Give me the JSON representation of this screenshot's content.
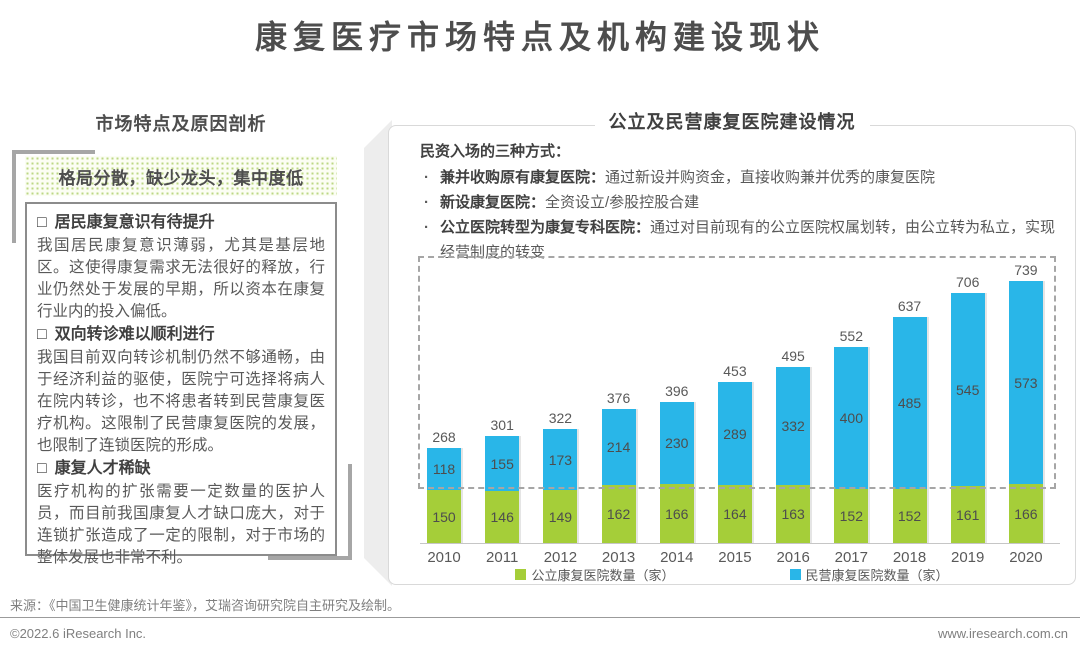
{
  "page": {
    "title": "康复医疗市场特点及机构建设现状",
    "source": "来源：《中国卫生健康统计年鉴》，艾瑞咨询研究院自主研究及绘制。",
    "copyright": "©2022.6 iResearch Inc.",
    "website": "www.iresearch.com.cn"
  },
  "left_panel": {
    "header": "市场特点及原因剖析",
    "highlight": "格局分散，缺少龙头，集中度低",
    "bullet_char": "□",
    "sections": [
      {
        "heading": "居民康复意识有待提升",
        "body": "我国居民康复意识薄弱，尤其是基层地区。这使得康复需求无法很好的释放，行业仍然处于发展的早期，所以资本在康复行业内的投入偏低。"
      },
      {
        "heading": "双向转诊难以顺利进行",
        "body": "我国目前双向转诊机制仍然不够通畅，由于经济利益的驱使，医院宁可选择将病人在院内转诊，也不将患者转到民营康复医疗机构。这限制了民营康复医院的发展，也限制了连锁医院的形成。"
      },
      {
        "heading": "康复人才稀缺",
        "body": "医疗机构的扩张需要一定数量的医护人员，而目前我国康复人才缺口庞大，对于连锁扩张造成了一定的限制，对于市场的整体发展也非常不利。"
      }
    ]
  },
  "right_panel": {
    "header": "公立及民营康复医院建设情况",
    "intro": "民资入场的三种方式：",
    "bullet_char": "·",
    "bullets": [
      {
        "label": "兼并收购原有康复医院：",
        "text": "通过新设并购资金，直接收购兼并优秀的康复医院"
      },
      {
        "label": "新设康复医院：",
        "text": "全资设立/参股控股合建"
      },
      {
        "label": "公立医院转型为康复专科医院：",
        "text": "通过对目前现有的公立医院权属划转，由公立转为私立，实现经营制度的转变"
      }
    ]
  },
  "chart_data": {
    "type": "bar",
    "stacked": true,
    "title": "公立及民营康复医院建设情况",
    "categories": [
      "2010",
      "2011",
      "2012",
      "2013",
      "2014",
      "2015",
      "2016",
      "2017",
      "2018",
      "2019",
      "2020"
    ],
    "series": [
      {
        "name": "公立康复医院数量（家）",
        "color": "#a5ce39",
        "values": [
          150,
          146,
          149,
          162,
          166,
          164,
          163,
          152,
          152,
          161,
          166
        ]
      },
      {
        "name": "民营康复医院数量（家）",
        "color": "#29b6e8",
        "values": [
          118,
          155,
          173,
          214,
          230,
          289,
          332,
          400,
          485,
          545,
          573
        ]
      }
    ],
    "totals": [
      268,
      301,
      322,
      376,
      396,
      453,
      495,
      552,
      637,
      706,
      739
    ],
    "xlabel": "",
    "ylabel": "",
    "ylim": [
      0,
      800
    ],
    "grid": false,
    "legend_position": "bottom",
    "value_labels": true
  },
  "colors": {
    "public_green": "#a5ce39",
    "private_blue": "#29b6e8",
    "heading_gray": "#4d4d4d",
    "body_gray": "#595959",
    "frame_gray": "#a6a6a6"
  }
}
